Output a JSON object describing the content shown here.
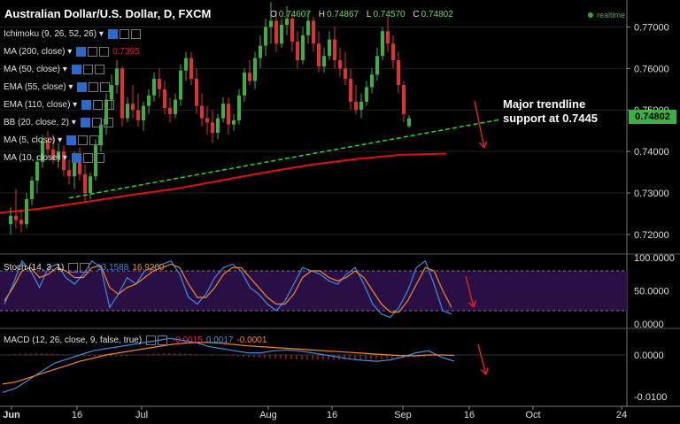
{
  "header": {
    "title": "Australian Dollar/U.S. Dollar, D, FXCM",
    "ohlc": [
      {
        "k": "O",
        "v": "0.74607"
      },
      {
        "k": "H",
        "v": "0.74867"
      },
      {
        "k": "L",
        "v": "0.74570"
      },
      {
        "k": "C",
        "v": "0.74802"
      }
    ],
    "realtime": "realtime"
  },
  "indicators": [
    {
      "label": "Ichimoku (9, 26, 52, 26)",
      "value": ""
    },
    {
      "label": "MA (200, close)",
      "value": "0.7395",
      "value_color": "#e02020"
    },
    {
      "label": "MA (50, close)",
      "value": ""
    },
    {
      "label": "EMA (55, close)",
      "value": ""
    },
    {
      "label": "EMA (110, close)",
      "value": ""
    },
    {
      "label": "BB (20, close, 2)",
      "value": ""
    },
    {
      "label": "MA (5, close)",
      "value": ""
    },
    {
      "label": "MA (10, close)",
      "value": ""
    }
  ],
  "annotation": {
    "line1": "Major trendline",
    "line2": "support at 0.7445"
  },
  "current_price": "0.74802",
  "colors": {
    "up": "#3cb043",
    "down": "#e03030",
    "trend": "#22dd22",
    "ma200": "#e01010",
    "stoch_k": "#3b8de0",
    "stoch_d": "#f08a2a",
    "panel": "#2a0f45"
  },
  "stoch": {
    "label": "Stoch (14, 3, 1)",
    "k_value": "13.1588",
    "d_value": "16.9200",
    "ticks": [
      "100.0000",
      "50.0000",
      "0.0000"
    ]
  },
  "macd": {
    "label": "MACD (12, 26, close, 9, false, true)",
    "hist_value": "-0.0015",
    "macd_value": "0.0017",
    "signal_value": "-0.0001",
    "ticks": [
      "0.0000",
      "-0.0100"
    ]
  },
  "chart_data": {
    "type": "candlestick",
    "y_axis_ticks": [
      "0.77000",
      "0.76000",
      "0.75000",
      "0.74000",
      "0.73000",
      "0.72000"
    ],
    "ylim": [
      0.7155,
      0.7765
    ],
    "x_labels": [
      "Jun",
      "16",
      "Jul",
      "Aug",
      "16",
      "Sep",
      "16",
      "Oct",
      "24"
    ],
    "candles": [
      {
        "o": 0.7225,
        "h": 0.7265,
        "l": 0.72,
        "c": 0.7245
      },
      {
        "o": 0.7245,
        "h": 0.731,
        "l": 0.7215,
        "c": 0.7235
      },
      {
        "o": 0.7235,
        "h": 0.726,
        "l": 0.7205,
        "c": 0.7225
      },
      {
        "o": 0.7225,
        "h": 0.73,
        "l": 0.7215,
        "c": 0.7285
      },
      {
        "o": 0.7285,
        "h": 0.734,
        "l": 0.727,
        "c": 0.733
      },
      {
        "o": 0.733,
        "h": 0.739,
        "l": 0.73,
        "c": 0.7375
      },
      {
        "o": 0.7375,
        "h": 0.744,
        "l": 0.736,
        "c": 0.7425
      },
      {
        "o": 0.7425,
        "h": 0.745,
        "l": 0.739,
        "c": 0.7405
      },
      {
        "o": 0.7405,
        "h": 0.744,
        "l": 0.737,
        "c": 0.738
      },
      {
        "o": 0.738,
        "h": 0.742,
        "l": 0.736,
        "c": 0.74
      },
      {
        "o": 0.74,
        "h": 0.7415,
        "l": 0.734,
        "c": 0.7355
      },
      {
        "o": 0.7355,
        "h": 0.738,
        "l": 0.732,
        "c": 0.734
      },
      {
        "o": 0.734,
        "h": 0.74,
        "l": 0.731,
        "c": 0.7385
      },
      {
        "o": 0.7385,
        "h": 0.741,
        "l": 0.733,
        "c": 0.7345
      },
      {
        "o": 0.7345,
        "h": 0.737,
        "l": 0.728,
        "c": 0.73
      },
      {
        "o": 0.73,
        "h": 0.735,
        "l": 0.7285,
        "c": 0.734
      },
      {
        "o": 0.734,
        "h": 0.743,
        "l": 0.733,
        "c": 0.7415
      },
      {
        "o": 0.7415,
        "h": 0.748,
        "l": 0.74,
        "c": 0.7465
      },
      {
        "o": 0.7465,
        "h": 0.754,
        "l": 0.744,
        "c": 0.7525
      },
      {
        "o": 0.7525,
        "h": 0.7585,
        "l": 0.75,
        "c": 0.756
      },
      {
        "o": 0.756,
        "h": 0.762,
        "l": 0.754,
        "c": 0.76
      },
      {
        "o": 0.76,
        "h": 0.7605,
        "l": 0.746,
        "c": 0.748
      },
      {
        "o": 0.748,
        "h": 0.753,
        "l": 0.747,
        "c": 0.7515
      },
      {
        "o": 0.7515,
        "h": 0.756,
        "l": 0.748,
        "c": 0.75
      },
      {
        "o": 0.75,
        "h": 0.754,
        "l": 0.746,
        "c": 0.7475
      },
      {
        "o": 0.7475,
        "h": 0.752,
        "l": 0.745,
        "c": 0.751
      },
      {
        "o": 0.751,
        "h": 0.755,
        "l": 0.749,
        "c": 0.7535
      },
      {
        "o": 0.7535,
        "h": 0.759,
        "l": 0.752,
        "c": 0.7575
      },
      {
        "o": 0.7575,
        "h": 0.76,
        "l": 0.753,
        "c": 0.755
      },
      {
        "o": 0.755,
        "h": 0.757,
        "l": 0.749,
        "c": 0.7505
      },
      {
        "o": 0.7505,
        "h": 0.753,
        "l": 0.747,
        "c": 0.749
      },
      {
        "o": 0.749,
        "h": 0.754,
        "l": 0.748,
        "c": 0.7525
      },
      {
        "o": 0.7525,
        "h": 0.761,
        "l": 0.751,
        "c": 0.7595
      },
      {
        "o": 0.7595,
        "h": 0.764,
        "l": 0.757,
        "c": 0.7625
      },
      {
        "o": 0.7625,
        "h": 0.764,
        "l": 0.756,
        "c": 0.7575
      },
      {
        "o": 0.7575,
        "h": 0.76,
        "l": 0.749,
        "c": 0.751
      },
      {
        "o": 0.751,
        "h": 0.754,
        "l": 0.746,
        "c": 0.748
      },
      {
        "o": 0.748,
        "h": 0.751,
        "l": 0.744,
        "c": 0.747
      },
      {
        "o": 0.747,
        "h": 0.75,
        "l": 0.742,
        "c": 0.7445
      },
      {
        "o": 0.7445,
        "h": 0.749,
        "l": 0.743,
        "c": 0.748
      },
      {
        "o": 0.748,
        "h": 0.753,
        "l": 0.747,
        "c": 0.7515
      },
      {
        "o": 0.7515,
        "h": 0.753,
        "l": 0.744,
        "c": 0.7465
      },
      {
        "o": 0.7465,
        "h": 0.749,
        "l": 0.745,
        "c": 0.7475
      },
      {
        "o": 0.7475,
        "h": 0.755,
        "l": 0.7465,
        "c": 0.7535
      },
      {
        "o": 0.7535,
        "h": 0.76,
        "l": 0.752,
        "c": 0.759
      },
      {
        "o": 0.759,
        "h": 0.762,
        "l": 0.756,
        "c": 0.757
      },
      {
        "o": 0.757,
        "h": 0.764,
        "l": 0.755,
        "c": 0.7625
      },
      {
        "o": 0.7625,
        "h": 0.768,
        "l": 0.76,
        "c": 0.7655
      },
      {
        "o": 0.7655,
        "h": 0.772,
        "l": 0.763,
        "c": 0.77
      },
      {
        "o": 0.77,
        "h": 0.776,
        "l": 0.766,
        "c": 0.7715
      },
      {
        "o": 0.7715,
        "h": 0.774,
        "l": 0.764,
        "c": 0.766
      },
      {
        "o": 0.766,
        "h": 0.772,
        "l": 0.765,
        "c": 0.7705
      },
      {
        "o": 0.7705,
        "h": 0.775,
        "l": 0.768,
        "c": 0.772
      },
      {
        "o": 0.772,
        "h": 0.773,
        "l": 0.764,
        "c": 0.7665
      },
      {
        "o": 0.7665,
        "h": 0.769,
        "l": 0.76,
        "c": 0.762
      },
      {
        "o": 0.762,
        "h": 0.77,
        "l": 0.761,
        "c": 0.768
      },
      {
        "o": 0.768,
        "h": 0.7735,
        "l": 0.766,
        "c": 0.7715
      },
      {
        "o": 0.7715,
        "h": 0.7725,
        "l": 0.764,
        "c": 0.766
      },
      {
        "o": 0.766,
        "h": 0.769,
        "l": 0.759,
        "c": 0.7605
      },
      {
        "o": 0.7605,
        "h": 0.765,
        "l": 0.759,
        "c": 0.763
      },
      {
        "o": 0.763,
        "h": 0.769,
        "l": 0.762,
        "c": 0.767
      },
      {
        "o": 0.767,
        "h": 0.77,
        "l": 0.76,
        "c": 0.762
      },
      {
        "o": 0.762,
        "h": 0.765,
        "l": 0.758,
        "c": 0.76
      },
      {
        "o": 0.76,
        "h": 0.764,
        "l": 0.756,
        "c": 0.7575
      },
      {
        "o": 0.7575,
        "h": 0.76,
        "l": 0.75,
        "c": 0.752
      },
      {
        "o": 0.752,
        "h": 0.756,
        "l": 0.749,
        "c": 0.75
      },
      {
        "o": 0.75,
        "h": 0.754,
        "l": 0.748,
        "c": 0.752
      },
      {
        "o": 0.752,
        "h": 0.757,
        "l": 0.751,
        "c": 0.7555
      },
      {
        "o": 0.7555,
        "h": 0.76,
        "l": 0.754,
        "c": 0.7585
      },
      {
        "o": 0.7585,
        "h": 0.765,
        "l": 0.757,
        "c": 0.763
      },
      {
        "o": 0.763,
        "h": 0.77,
        "l": 0.762,
        "c": 0.769
      },
      {
        "o": 0.769,
        "h": 0.7725,
        "l": 0.764,
        "c": 0.766
      },
      {
        "o": 0.766,
        "h": 0.768,
        "l": 0.76,
        "c": 0.762
      },
      {
        "o": 0.762,
        "h": 0.764,
        "l": 0.754,
        "c": 0.756
      },
      {
        "o": 0.756,
        "h": 0.757,
        "l": 0.747,
        "c": 0.749
      },
      {
        "o": 0.7461,
        "h": 0.7487,
        "l": 0.7457,
        "c": 0.748
      }
    ],
    "trendline": {
      "from": {
        "index": 11,
        "value": 0.7288
      },
      "to": {
        "index": 84,
        "value": 0.7458
      }
    },
    "ma200": {
      "from": {
        "index": -3,
        "value": 0.7251
      },
      "to": {
        "index": 82,
        "value": 0.7395
      },
      "values": [
        0.7251,
        0.7262,
        0.7278,
        0.7295,
        0.731,
        0.733,
        0.735,
        0.7368,
        0.7382,
        0.7392,
        0.7395
      ]
    }
  }
}
